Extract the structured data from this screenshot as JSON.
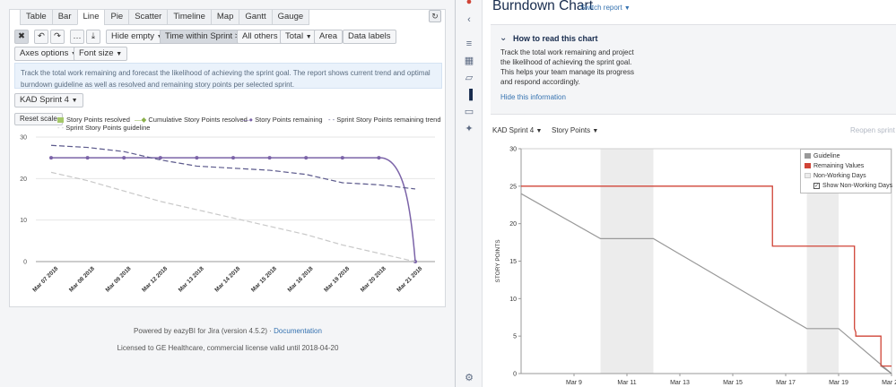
{
  "left": {
    "tabs": [
      "Table",
      "Bar",
      "Line",
      "Pie",
      "Scatter",
      "Timeline",
      "Map",
      "Gantt",
      "Gauge"
    ],
    "active_tab": "Line",
    "toolbar": {
      "hide_empty": "Hide empty",
      "time_filter": "Time within Sprint > 0",
      "all_others": "All others",
      "total": "Total",
      "area": "Area",
      "data_labels": "Data labels",
      "axes_options": "Axes options",
      "font_size": "Font size"
    },
    "description": "Track the total work remaining and forecast the likelihood of achieving the sprint goal. The report shows current trend and optimal burndown guideline as well as resolved and remaining story points per selected sprint.",
    "sprint_select": "KAD Sprint 4",
    "reset_scale": "Reset scale",
    "legend": [
      {
        "name": "Story Points resolved",
        "color": "#a6c96a"
      },
      {
        "name": "Cumulative Story Points resolved",
        "color": "#8bb04a"
      },
      {
        "name": "Story Points remaining",
        "color": "#7b63a8"
      },
      {
        "name": "Sprint Story Points remaining trend",
        "color": "#5c5a8c"
      },
      {
        "name": "Sprint Story Points guideline",
        "color": "#c8c8c8"
      }
    ],
    "footer": {
      "powered": "Powered by eazyBI for Jira (version 4.5.2)",
      "separator": "·",
      "documentation": "Documentation",
      "license": "Licensed to GE Healthcare, commercial license valid until 2018-04-20"
    }
  },
  "left_chart_data": {
    "type": "line",
    "categories": [
      "Mar 07 2018",
      "Mar 08 2018",
      "Mar 09 2018",
      "Mar 12 2018",
      "Mar 13 2018",
      "Mar 14 2018",
      "Mar 15 2018",
      "Mar 16 2018",
      "Mar 19 2018",
      "Mar 20 2018",
      "Mar 21 2018"
    ],
    "yticks": [
      0,
      10,
      20,
      30
    ],
    "ylim": [
      0,
      30
    ],
    "series": [
      {
        "name": "Story Points remaining",
        "values": [
          25,
          25,
          25,
          25,
          25,
          25,
          25,
          25,
          25,
          25,
          0
        ],
        "color": "#7b63a8"
      },
      {
        "name": "Sprint Story Points remaining trend",
        "values": [
          28,
          27.5,
          26.5,
          24.5,
          23,
          22.5,
          22,
          21,
          19,
          18.5,
          17.5
        ],
        "color": "#5c5a8c",
        "style": "dashed"
      },
      {
        "name": "Sprint Story Points guideline",
        "values": [
          21.5,
          19.5,
          17,
          14.5,
          12.5,
          10.5,
          8.5,
          6.5,
          4,
          2,
          0
        ],
        "color": "#c8c8c8",
        "style": "dashed"
      }
    ]
  },
  "right": {
    "title": "Burndown Chart",
    "switch_report": "Switch report",
    "how_title": "How to read this chart",
    "how_text": "Track the total work remaining and project the likelihood of achieving the sprint goal. This helps your team manage its progress and respond accordingly.",
    "hide_info": "Hide this information",
    "sprint_select": "KAD Sprint 4",
    "metric_select": "Story Points",
    "reopen": "Reopen sprint",
    "legend": {
      "guideline": "Guideline",
      "remaining": "Remaining Values",
      "non_working": "Non-Working Days",
      "show_non_working": "Show Non-Working Days"
    }
  },
  "right_chart_data": {
    "type": "line",
    "ylabel": "STORY POINTS",
    "ylim": [
      0,
      30
    ],
    "yticks": [
      0,
      5,
      10,
      15,
      20,
      25,
      30
    ],
    "xticks": [
      "Mar 9",
      "Mar 11",
      "Mar 13",
      "Mar 15",
      "Mar 17",
      "Mar 19",
      "Mar 21"
    ],
    "x_days": {
      "start": 7,
      "end": 21
    },
    "non_working_ranges": [
      [
        10,
        12
      ],
      [
        17.8,
        19
      ]
    ],
    "guideline": [
      [
        7,
        24
      ],
      [
        10,
        18
      ],
      [
        12,
        18
      ],
      [
        17.8,
        6
      ],
      [
        19,
        6
      ],
      [
        21,
        0
      ]
    ],
    "remaining": [
      [
        7,
        25
      ],
      [
        16.5,
        25
      ],
      [
        16.5,
        17
      ],
      [
        19.6,
        17
      ],
      [
        19.6,
        6
      ],
      [
        19.65,
        5.5
      ],
      [
        19.65,
        5
      ],
      [
        20.6,
        5
      ],
      [
        20.6,
        1
      ],
      [
        21,
        1
      ]
    ],
    "colors": {
      "guideline": "#999999",
      "remaining": "#d04437",
      "non_working": "#ececec"
    }
  }
}
